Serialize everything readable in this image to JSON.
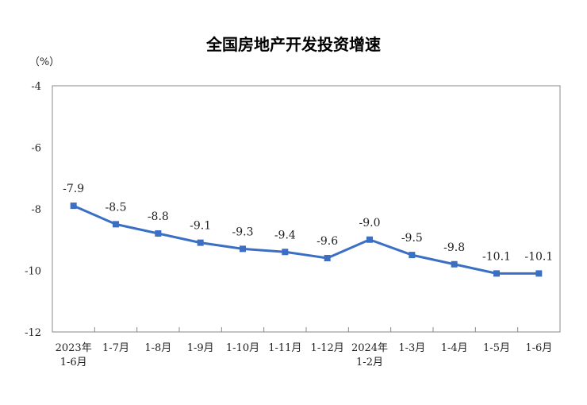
{
  "chart_data": {
    "type": "line",
    "title": "全国房地产开发投资增速",
    "ylabel": "（%）",
    "ylim": [
      -12,
      -4
    ],
    "yticks": [
      -4,
      -6,
      -8,
      -10,
      -12
    ],
    "grid": false,
    "categories": [
      [
        "2023年",
        "1-6月"
      ],
      [
        "1-7月"
      ],
      [
        "1-8月"
      ],
      [
        "1-9月"
      ],
      [
        "1-10月"
      ],
      [
        "1-11月"
      ],
      [
        "1-12月"
      ],
      [
        "2024年",
        "1-2月"
      ],
      [
        "1-3月"
      ],
      [
        "1-4月"
      ],
      [
        "1-5月"
      ],
      [
        "1-6月"
      ]
    ],
    "series": [
      {
        "values": [
          -7.9,
          -8.5,
          -8.8,
          -9.1,
          -9.3,
          -9.4,
          -9.6,
          -9.0,
          -9.5,
          -9.8,
          -10.1,
          -10.1
        ],
        "labels": [
          "-7.9",
          "-8.5",
          "-8.8",
          "-9.1",
          "-9.3",
          "-9.4",
          "-9.6",
          "-9.0",
          "-9.5",
          "-9.8",
          "-10.1",
          "-10.1"
        ],
        "color": "#3a6fc4"
      }
    ]
  }
}
